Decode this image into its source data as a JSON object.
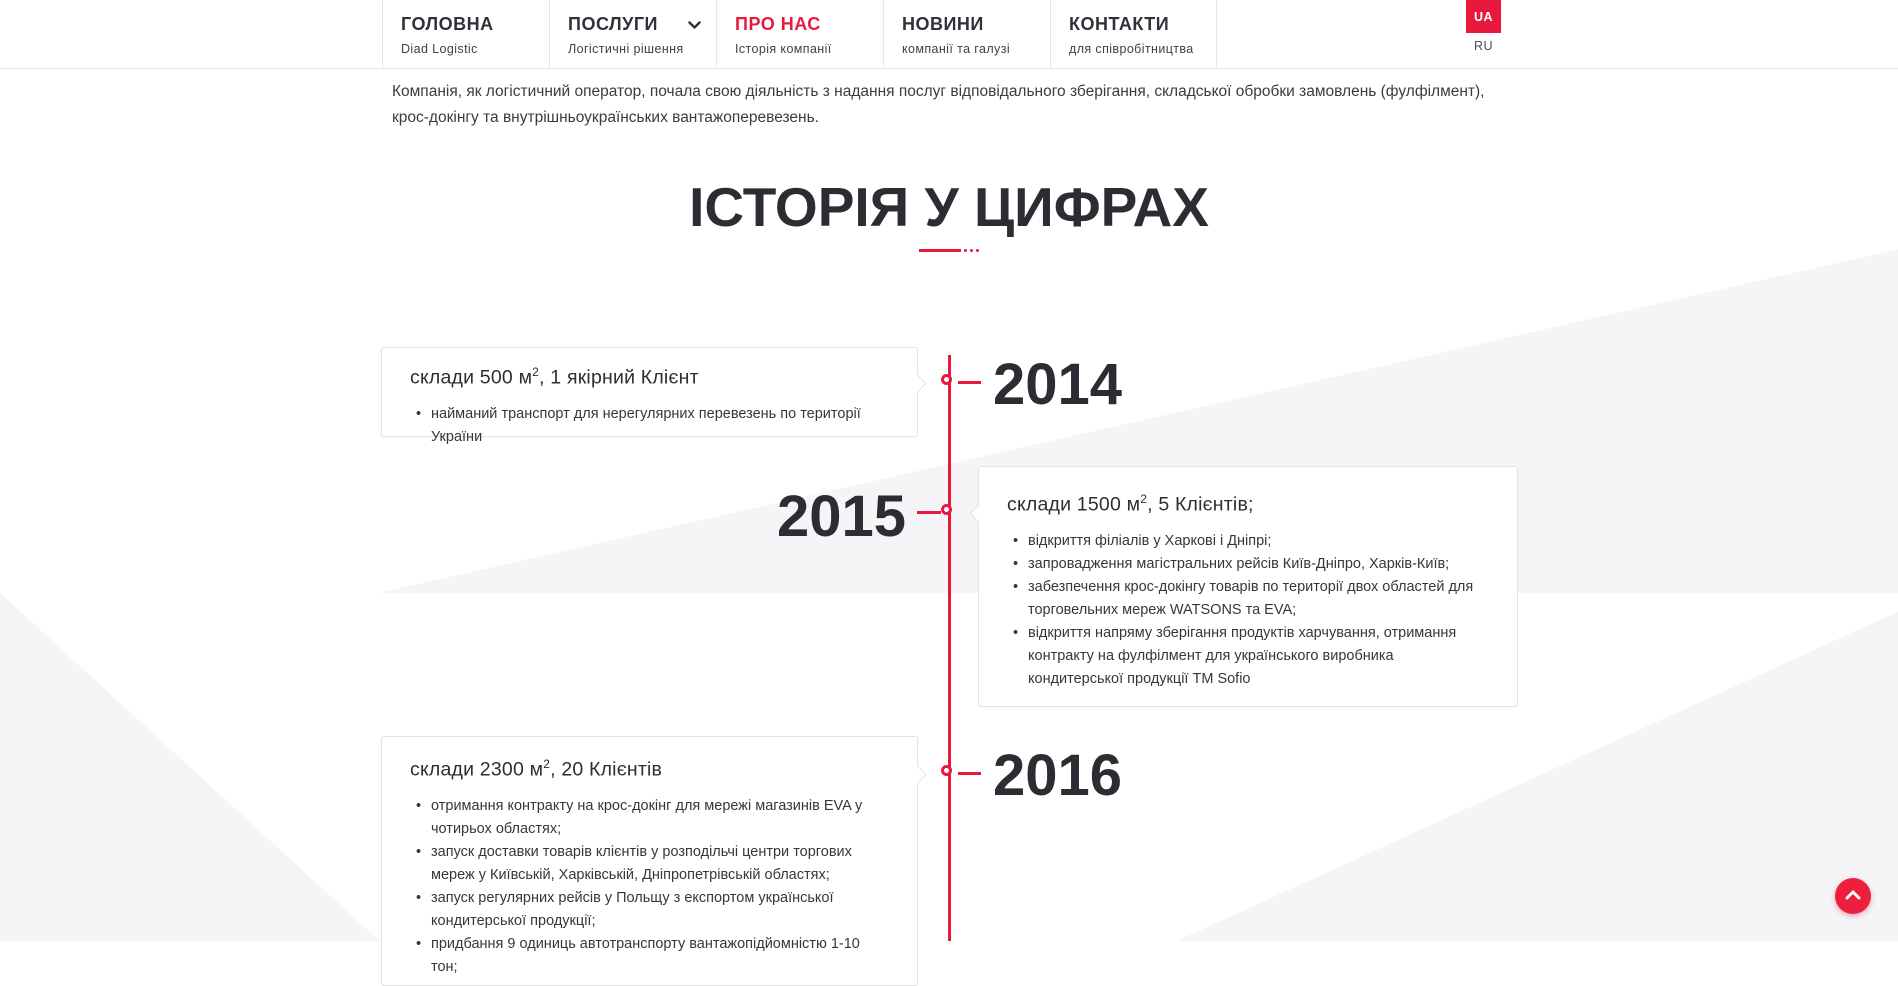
{
  "accent_color": "#e9193d",
  "header": {
    "nav": {
      "items": [
        {
          "label": "ГОЛОВНА",
          "sublabel": "Diad Logistic"
        },
        {
          "label": "ПОСЛУГИ",
          "sublabel": "Логістичні рішення",
          "dropdown": true
        },
        {
          "label": "ПРО НАС",
          "sublabel": "Історія компанії",
          "active": true
        },
        {
          "label": "НОВИНИ",
          "sublabel": "компанії та галузі"
        },
        {
          "label": "КОНТАКТИ",
          "sublabel": "для співробітництва"
        }
      ]
    },
    "lang": {
      "current": "UA",
      "other": "RU"
    }
  },
  "intro": {
    "lines": [
      "Компанія, як логістичний оператор, почала свою діяльність з надання послуг відповідального зберігання, складської обробки замовлень (фулфілмент),",
      "крос-докінгу та внутрішньоукраїнських вантажоперевезень."
    ]
  },
  "section_title": "ІСТОРІЯ У ЦИФРАХ",
  "timeline": {
    "rows": [
      {
        "year": "2014",
        "title_pre": "склади 500 м",
        "title_sup": "2",
        "title_post": ", 1 якірний Клієнт",
        "bullets": [
          "найманий транспорт для нерегулярних перевезень по території України"
        ]
      },
      {
        "year": "2015",
        "title_pre": "склади 1500 м",
        "title_sup": "2",
        "title_post": ", 5 Клієнтів;",
        "bullets": [
          "відкриття філіалів у Харкові і Дніпрі;",
          "запровадження магістральних рейсів Київ-Дніпро, Харків-Київ;",
          "забезпечення крос-докінгу товарів по території двох областей для торговельних мереж WATSONS та EVA;",
          "відкриття напряму зберігання продуктів харчування, отримання контракту на фулфілмент для українського виробника кондитерської продукції ТМ Sofio"
        ]
      },
      {
        "year": "2016",
        "title_pre": "склади 2300 м",
        "title_sup": "2",
        "title_post": ", 20 Клієнтів",
        "bullets": [
          "отримання контракту на крос-докінг для мережі магазинів EVA у чотирьох областях;",
          "запуск доставки товарів клієнтів у розподільчі центри торгових мереж у Київській, Харківській, Дніпропетрівській областях;",
          "запуск регулярних рейсів у Польщу з експортом української кондитерської продукції;",
          "придбання 9 одиниць автотранспорту вантажопідйомністю 1-10 тон;"
        ]
      }
    ]
  }
}
